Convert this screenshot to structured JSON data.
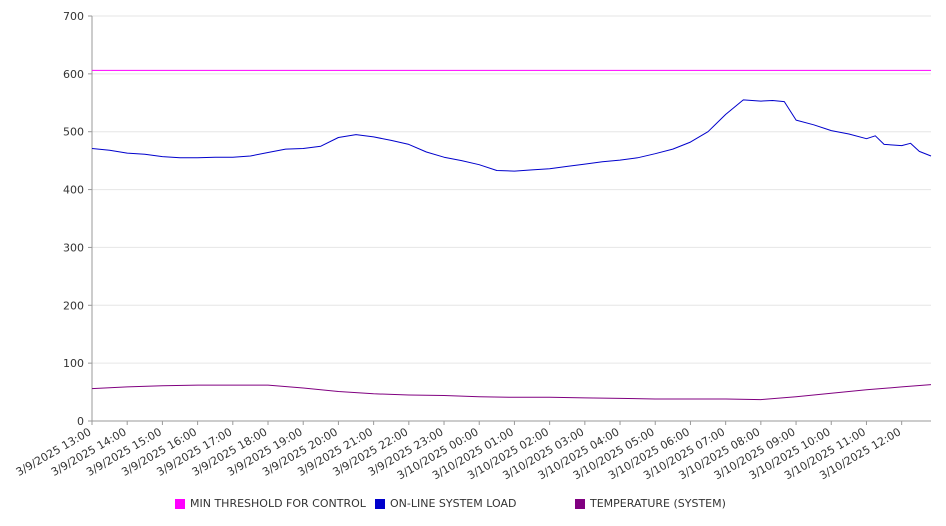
{
  "chart_data": {
    "type": "line",
    "title": "",
    "xlabel": "",
    "ylabel": "",
    "ylim": [
      0,
      700
    ],
    "yticks": [
      0,
      100,
      200,
      300,
      400,
      500,
      600,
      700
    ],
    "xticks": [
      "3/9/2025 13:00",
      "3/9/2025 14:00",
      "3/9/2025 15:00",
      "3/9/2025 16:00",
      "3/9/2025 17:00",
      "3/9/2025 18:00",
      "3/9/2025 19:00",
      "3/9/2025 20:00",
      "3/9/2025 21:00",
      "3/9/2025 22:00",
      "3/9/2025 23:00",
      "3/10/2025 00:00",
      "3/10/2025 01:00",
      "3/10/2025 02:00",
      "3/10/2025 03:00",
      "3/10/2025 04:00",
      "3/10/2025 05:00",
      "3/10/2025 06:00",
      "3/10/2025 07:00",
      "3/10/2025 08:00",
      "3/10/2025 09:00",
      "3/10/2025 10:00",
      "3/10/2025 11:00",
      "3/10/2025 12:00"
    ],
    "x_end": "3/10/2025 12:50",
    "grid": true,
    "legend_position": "bottom",
    "series": [
      {
        "name": "MIN THRESHOLD FOR CONTROL",
        "color": "#ff00ff",
        "x": [
          "3/9/2025 13:00",
          "3/10/2025 12:50"
        ],
        "values": [
          606,
          606
        ]
      },
      {
        "name": "ON-LINE SYSTEM LOAD",
        "color": "#0000cc",
        "x": [
          "3/9/2025 13:00",
          "3/9/2025 13:30",
          "3/9/2025 14:00",
          "3/9/2025 14:30",
          "3/9/2025 15:00",
          "3/9/2025 15:30",
          "3/9/2025 16:00",
          "3/9/2025 16:30",
          "3/9/2025 17:00",
          "3/9/2025 17:30",
          "3/9/2025 18:00",
          "3/9/2025 18:30",
          "3/9/2025 19:00",
          "3/9/2025 19:30",
          "3/9/2025 20:00",
          "3/9/2025 20:30",
          "3/9/2025 21:00",
          "3/9/2025 21:30",
          "3/9/2025 22:00",
          "3/9/2025 22:30",
          "3/9/2025 23:00",
          "3/9/2025 23:30",
          "3/10/2025 00:00",
          "3/10/2025 00:30",
          "3/10/2025 01:00",
          "3/10/2025 01:30",
          "3/10/2025 02:00",
          "3/10/2025 02:30",
          "3/10/2025 03:00",
          "3/10/2025 03:30",
          "3/10/2025 04:00",
          "3/10/2025 04:30",
          "3/10/2025 05:00",
          "3/10/2025 05:30",
          "3/10/2025 06:00",
          "3/10/2025 06:30",
          "3/10/2025 07:00",
          "3/10/2025 07:30",
          "3/10/2025 08:00",
          "3/10/2025 08:20",
          "3/10/2025 08:40",
          "3/10/2025 09:00",
          "3/10/2025 09:30",
          "3/10/2025 10:00",
          "3/10/2025 10:30",
          "3/10/2025 11:00",
          "3/10/2025 11:15",
          "3/10/2025 11:30",
          "3/10/2025 12:00",
          "3/10/2025 12:15",
          "3/10/2025 12:30",
          "3/10/2025 12:50"
        ],
        "values": [
          471,
          468,
          463,
          461,
          457,
          455,
          455,
          456,
          456,
          458,
          464,
          470,
          471,
          475,
          490,
          495,
          491,
          485,
          478,
          465,
          456,
          450,
          443,
          433,
          432,
          434,
          436,
          440,
          444,
          448,
          451,
          455,
          462,
          470,
          482,
          500,
          530,
          555,
          553,
          554,
          552,
          520,
          512,
          502,
          496,
          488,
          493,
          478,
          476,
          480,
          466,
          458
        ]
      },
      {
        "name": "TEMPERATURE (SYSTEM)",
        "color": "#800080",
        "x": [
          "3/9/2025 13:00",
          "3/9/2025 14:00",
          "3/9/2025 15:00",
          "3/9/2025 16:00",
          "3/9/2025 17:00",
          "3/9/2025 18:00",
          "3/9/2025 19:00",
          "3/9/2025 20:00",
          "3/9/2025 21:00",
          "3/9/2025 22:00",
          "3/9/2025 23:00",
          "3/10/2025 00:00",
          "3/10/2025 01:00",
          "3/10/2025 02:00",
          "3/10/2025 03:00",
          "3/10/2025 04:00",
          "3/10/2025 05:00",
          "3/10/2025 06:00",
          "3/10/2025 07:00",
          "3/10/2025 08:00",
          "3/10/2025 09:00",
          "3/10/2025 10:00",
          "3/10/2025 11:00",
          "3/10/2025 12:00",
          "3/10/2025 12:50"
        ],
        "values": [
          56,
          59,
          61,
          62,
          62,
          62,
          57,
          51,
          47,
          45,
          44,
          42,
          41,
          41,
          40,
          39,
          38,
          38,
          38,
          37,
          42,
          48,
          54,
          59,
          63
        ]
      }
    ]
  }
}
